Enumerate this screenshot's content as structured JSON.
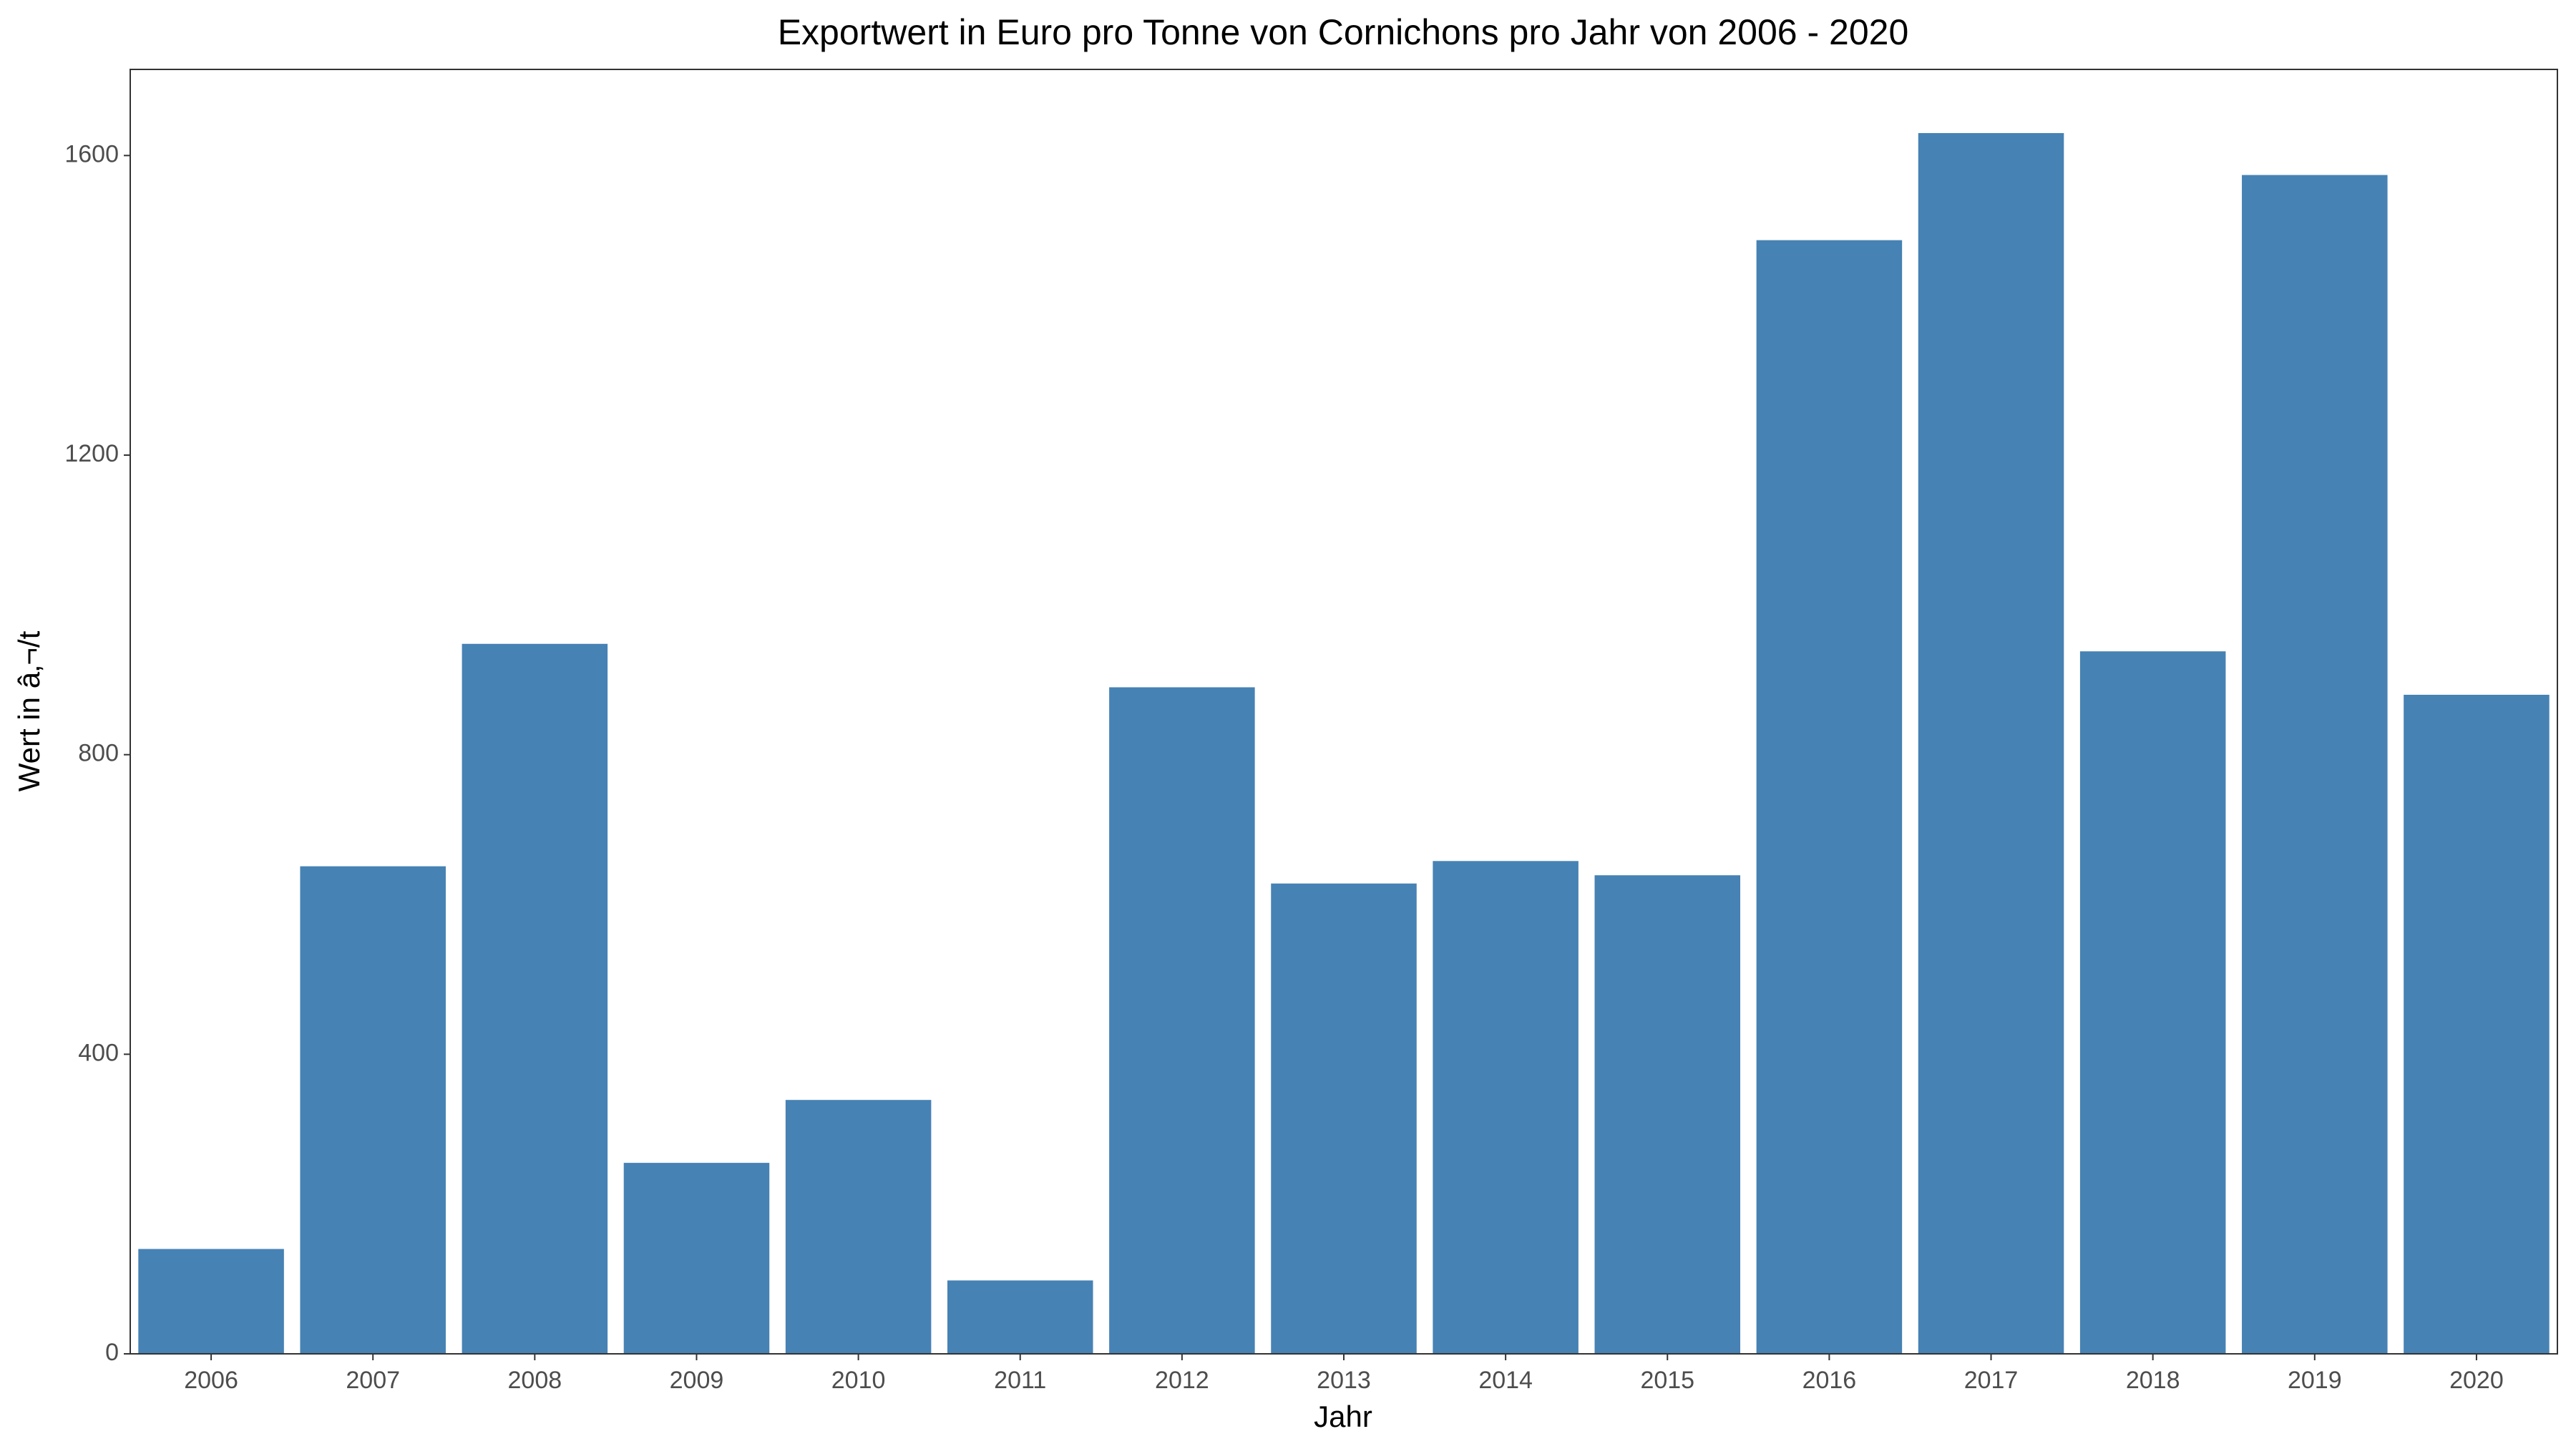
{
  "chart_data": {
    "type": "bar",
    "title": "Exportwert in Euro pro Tonne von Cornichons pro Jahr von 2006 - 2020",
    "xlabel": "Jahr",
    "ylabel": "Wert in â‚¬/t",
    "categories": [
      "2006",
      "2007",
      "2008",
      "2009",
      "2010",
      "2011",
      "2012",
      "2013",
      "2014",
      "2015",
      "2016",
      "2017",
      "2018",
      "2019",
      "2020"
    ],
    "values": [
      140,
      651,
      948,
      255,
      339,
      98,
      890,
      628,
      658,
      639,
      1487,
      1630,
      938,
      1574,
      880
    ],
    "ylim": [
      0,
      1715
    ],
    "yticks": [
      0,
      400,
      800,
      1200,
      1600
    ],
    "ytick_labels": [
      "0",
      "400",
      "800",
      "1200",
      "1600"
    ],
    "grid": false,
    "legend": "none",
    "bar_color": "#4682b4",
    "panel_border_color": "#333333",
    "tick_label_color": "#4d4d4d"
  }
}
